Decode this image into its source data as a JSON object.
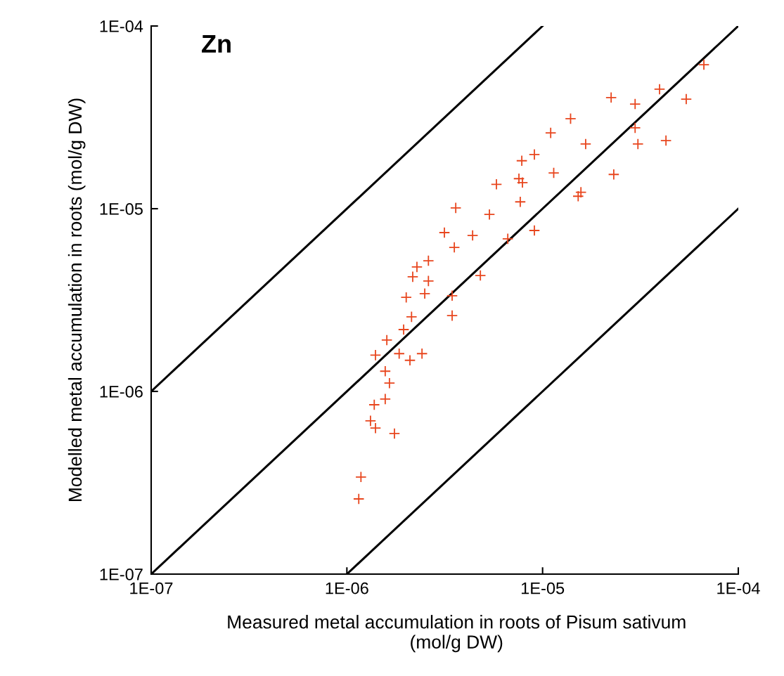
{
  "chart_data": {
    "type": "scatter",
    "xlabel": "Measured metal accumulation in roots of Pisum sativum\n(mol/g DW)",
    "ylabel": "Modelled metal accumulation in roots (mol/g DW)",
    "annotations": [
      "Zn"
    ],
    "log": "xy",
    "grid": false,
    "marker": "cross",
    "xlim": [
      1e-07,
      0.0001
    ],
    "ylim": [
      1e-07,
      0.0001
    ],
    "xticks": [
      {
        "value": 1e-07,
        "label": "1E-07"
      },
      {
        "value": 1e-06,
        "label": "1E-06"
      },
      {
        "value": 1e-05,
        "label": "1E-05"
      },
      {
        "value": 0.0001,
        "label": "1E-04"
      }
    ],
    "yticks": [
      {
        "value": 1e-07,
        "label": "1E-07"
      },
      {
        "value": 1e-06,
        "label": "1E-06"
      },
      {
        "value": 1e-05,
        "label": "1E-05"
      },
      {
        "value": 0.0001,
        "label": "1E-04"
      }
    ],
    "series": [
      {
        "type": "line",
        "color": "#000000",
        "marker": "none",
        "x": [
          1e-07,
          0.0001
        ],
        "values": [
          1e-07,
          0.0001
        ]
      },
      {
        "type": "line",
        "color": "#000000",
        "marker": "none",
        "x": [
          1e-07,
          1e-05
        ],
        "values": [
          1e-06,
          0.0001
        ]
      },
      {
        "type": "line",
        "color": "#000000",
        "marker": "none",
        "x": [
          1e-06,
          0.0001
        ],
        "values": [
          1e-07,
          1e-05
        ]
      },
      {
        "color": "#e8461e",
        "x": [
          6.67e-05,
          3.96e-05,
          5.42e-05,
          2.24e-05,
          2.97e-05,
          2.97e-05,
          1.39e-05,
          1.1e-05,
          3.07e-05,
          4.27e-05,
          1.66e-05,
          9.08e-06,
          7.83e-06,
          1.14e-05,
          2.31e-05,
          7.57e-06,
          7.89e-06,
          5.81e-06,
          7.69e-06,
          1.57e-05,
          1.52e-05,
          3.6e-06,
          5.35e-06,
          3.15e-06,
          4.39e-06,
          3.54e-06,
          6.64e-06,
          9.08e-06,
          2.61e-06,
          2.28e-06,
          2.17e-06,
          2.61e-06,
          4.81e-06,
          2.5e-06,
          3.45e-06,
          2.01e-06,
          3.45e-06,
          2.14e-06,
          1.95e-06,
          1.6e-06,
          1.4e-06,
          1.85e-06,
          2.42e-06,
          2.1e-06,
          1.57e-06,
          1.65e-06,
          1.57e-06,
          1.38e-06,
          1.32e-06,
          1.4e-06,
          1.75e-06,
          1.18e-06,
          1.15e-06
        ],
        "values": [
          6.14e-05,
          4.51e-05,
          3.98e-05,
          4.06e-05,
          3.74e-05,
          2.77e-05,
          3.11e-05,
          2.6e-05,
          2.26e-05,
          2.36e-05,
          2.26e-05,
          1.98e-05,
          1.83e-05,
          1.57e-05,
          1.54e-05,
          1.46e-05,
          1.39e-05,
          1.36e-05,
          1.09e-05,
          1.23e-05,
          1.17e-05,
          1.01e-05,
          9.3e-06,
          7.4e-06,
          7.14e-06,
          6.14e-06,
          6.84e-06,
          7.6e-06,
          5.19e-06,
          4.8e-06,
          4.24e-06,
          4.02e-06,
          4.31e-06,
          3.43e-06,
          3.34e-06,
          3.27e-06,
          2.6e-06,
          2.56e-06,
          2.18e-06,
          1.91e-06,
          1.58e-06,
          1.61e-06,
          1.61e-06,
          1.48e-06,
          1.29e-06,
          1.11e-06,
          9.08e-07,
          8.45e-07,
          6.9e-07,
          6.3e-07,
          5.88e-07,
          3.4e-07,
          2.58e-07
        ]
      }
    ]
  }
}
